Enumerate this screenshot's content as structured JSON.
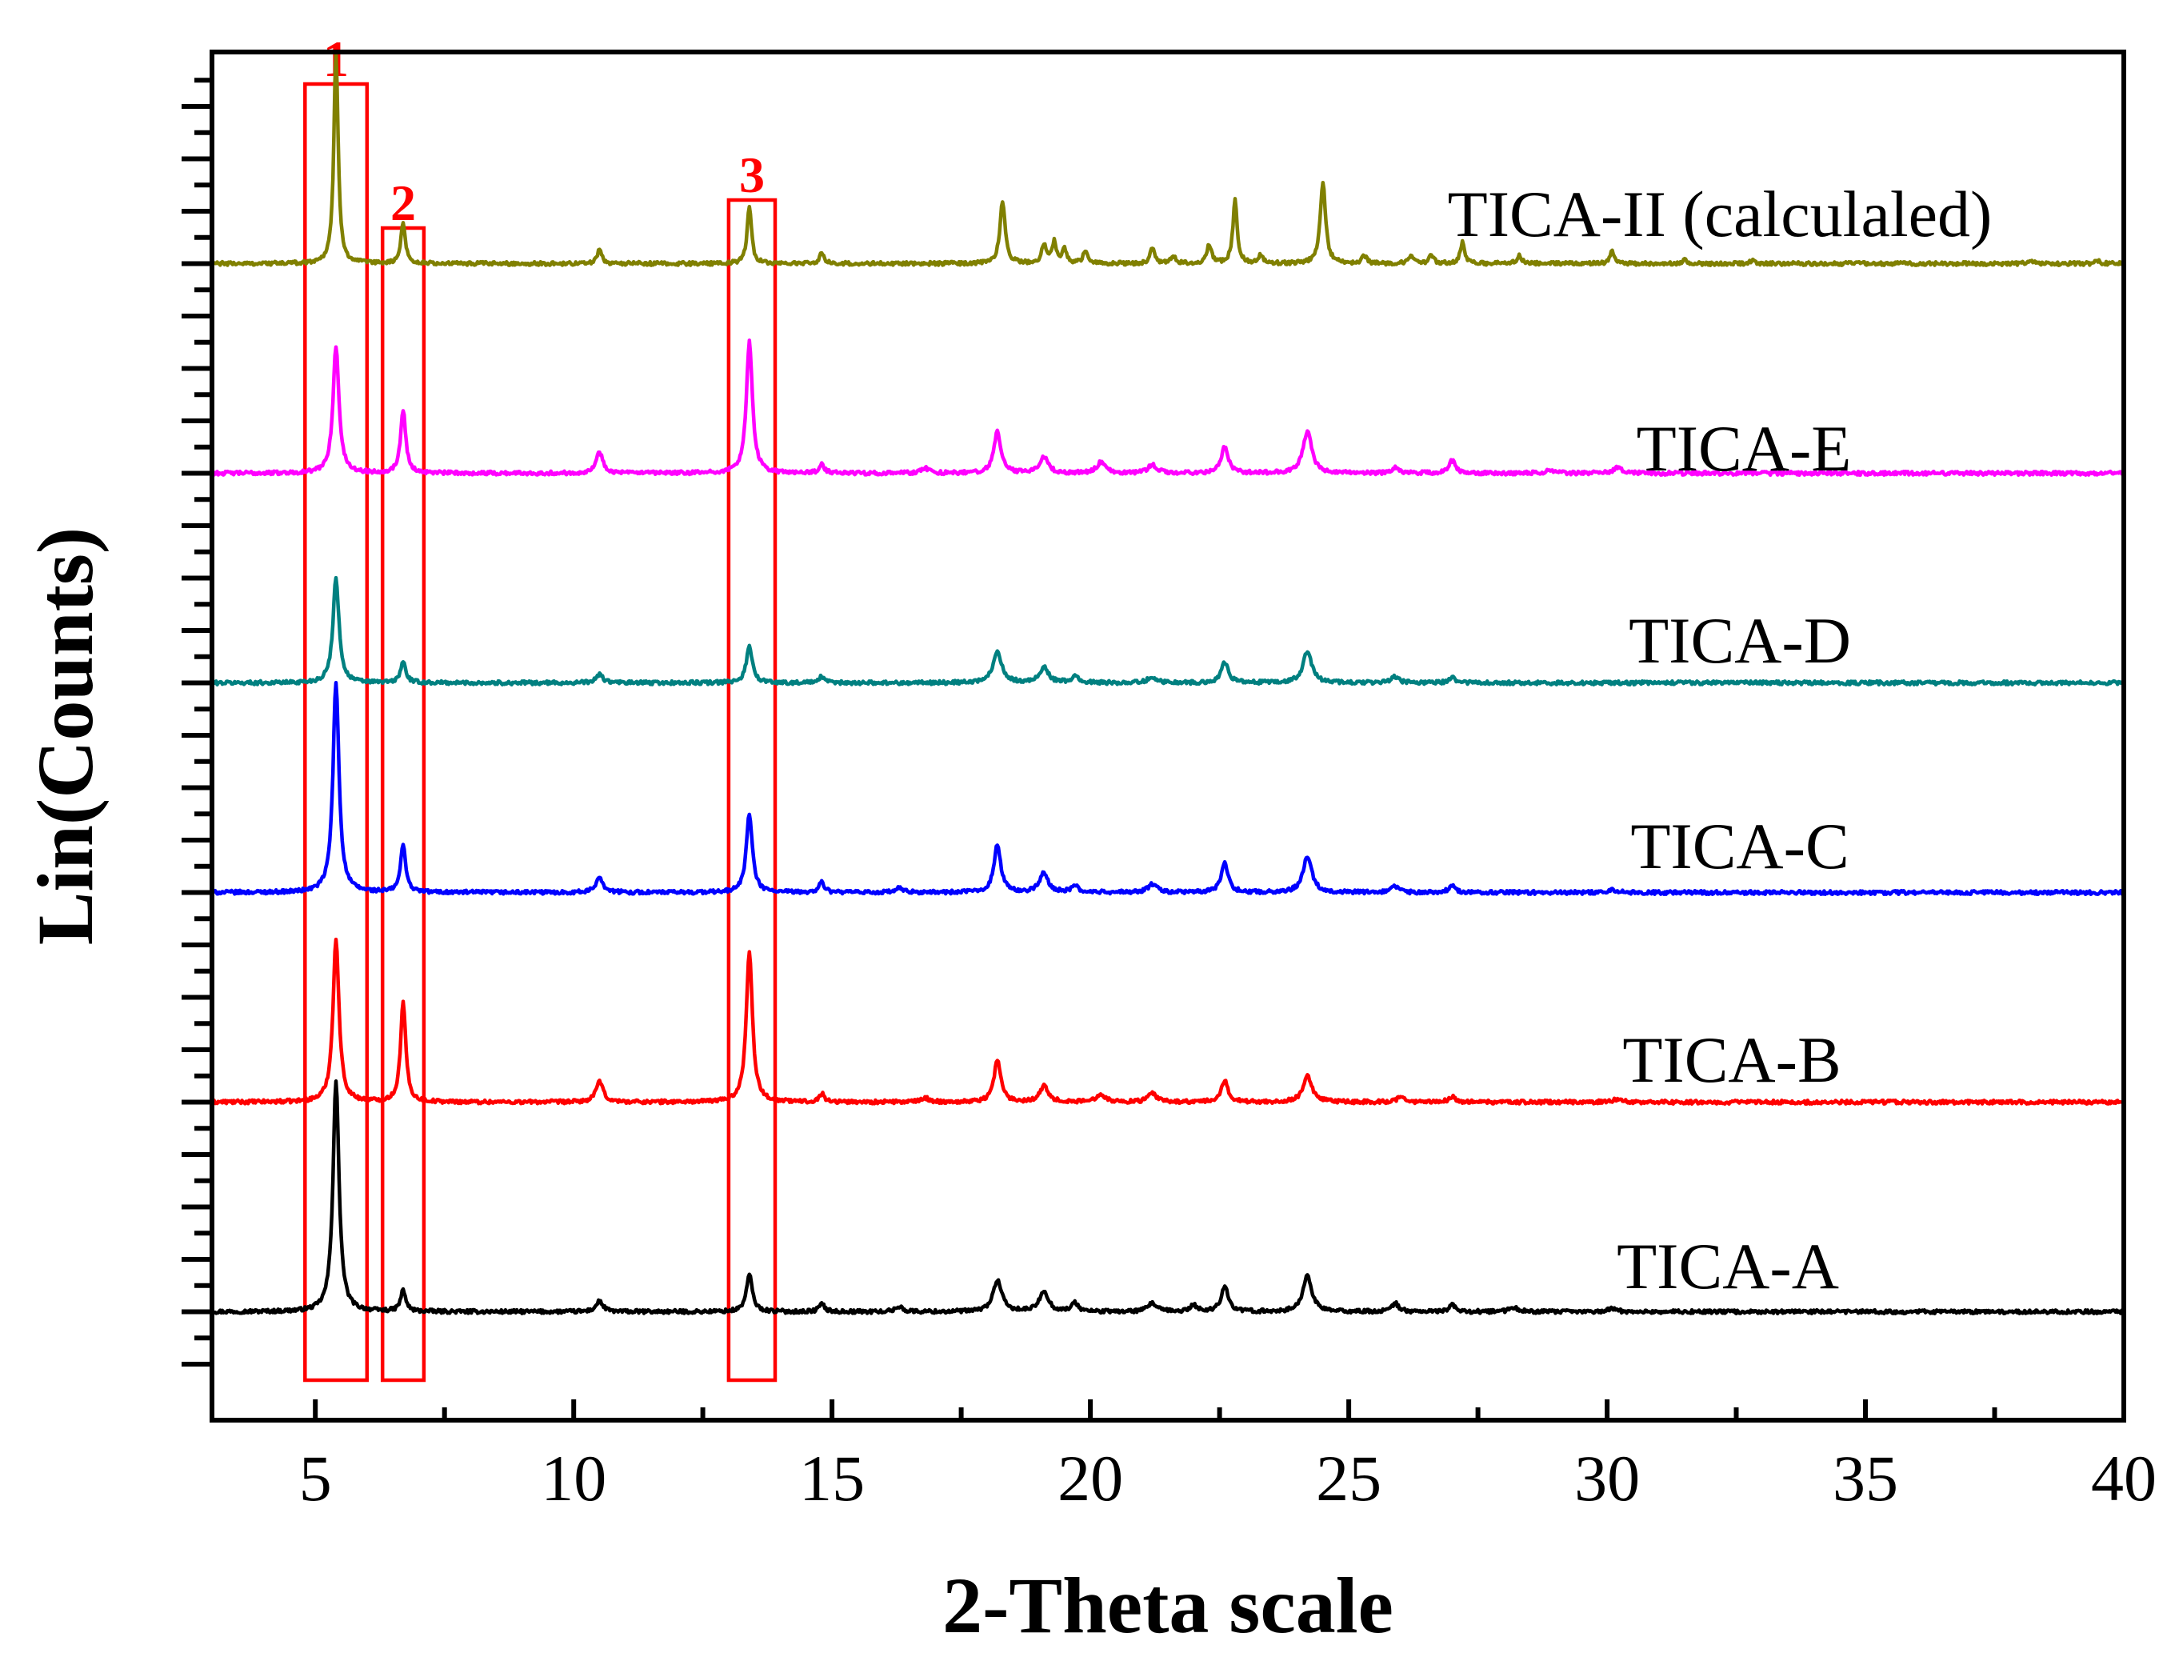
{
  "chart_data": {
    "type": "line",
    "title": "",
    "xlabel": "2-Theta scale",
    "ylabel": "Lin(Counts)",
    "xlim": [
      3,
      40
    ],
    "ylim": [
      0,
      100
    ],
    "x_ticks": [
      5,
      10,
      15,
      20,
      25,
      30,
      35,
      40
    ],
    "x_tick_labels": [
      "5",
      "10",
      "15",
      "20",
      "25",
      "30",
      "35",
      "40"
    ],
    "grid": false,
    "legend": "labels placed beside each trace",
    "series": [
      {
        "name": "TICA-A",
        "label": "TICA-A",
        "color": "#000000",
        "baseline": 5,
        "peaks": [
          [
            5.4,
            22,
            0.07
          ],
          [
            6.7,
            2,
            0.06
          ],
          [
            10.5,
            1,
            0.08
          ],
          [
            13.4,
            3.5,
            0.07
          ],
          [
            14.8,
            0.8,
            0.06
          ],
          [
            16.3,
            0.5,
            0.08
          ],
          [
            18.2,
            3,
            0.1
          ],
          [
            19.1,
            2,
            0.1
          ],
          [
            19.7,
            0.8,
            0.08
          ],
          [
            21.2,
            0.8,
            0.1
          ],
          [
            22.0,
            0.6,
            0.08
          ],
          [
            22.6,
            2.5,
            0.08
          ],
          [
            24.2,
            3.5,
            0.1
          ],
          [
            25.9,
            0.8,
            0.08
          ],
          [
            27.0,
            0.6,
            0.08
          ],
          [
            28.2,
            0.4,
            0.1
          ],
          [
            30.1,
            0.3,
            0.1
          ]
        ]
      },
      {
        "name": "TICA-B",
        "label": "TICA-B",
        "color": "#ff0000",
        "baseline": 25,
        "peaks": [
          [
            5.4,
            15.5,
            0.07
          ],
          [
            6.7,
            9.5,
            0.06
          ],
          [
            10.5,
            2,
            0.08
          ],
          [
            13.4,
            14.5,
            0.07
          ],
          [
            14.8,
            0.8,
            0.06
          ],
          [
            16.8,
            0.4,
            0.08
          ],
          [
            18.2,
            4,
            0.08
          ],
          [
            19.1,
            1.5,
            0.1
          ],
          [
            20.2,
            0.8,
            0.1
          ],
          [
            21.2,
            0.8,
            0.1
          ],
          [
            22.6,
            2,
            0.08
          ],
          [
            24.2,
            2.5,
            0.1
          ],
          [
            26.0,
            0.5,
            0.08
          ],
          [
            27.0,
            0.5,
            0.08
          ],
          [
            30.2,
            0.3,
            0.1
          ]
        ]
      },
      {
        "name": "TICA-C",
        "label": "TICA-C",
        "color": "#0000ff",
        "baseline": 45,
        "peaks": [
          [
            5.4,
            20,
            0.07
          ],
          [
            6.7,
            4.5,
            0.06
          ],
          [
            10.5,
            1.5,
            0.08
          ],
          [
            13.4,
            7.5,
            0.07
          ],
          [
            14.8,
            1,
            0.06
          ],
          [
            16.3,
            0.4,
            0.08
          ],
          [
            18.2,
            4.5,
            0.08
          ],
          [
            19.1,
            1.8,
            0.1
          ],
          [
            19.7,
            0.6,
            0.08
          ],
          [
            21.2,
            0.8,
            0.1
          ],
          [
            22.6,
            2.8,
            0.08
          ],
          [
            24.2,
            3.5,
            0.1
          ],
          [
            25.9,
            0.6,
            0.08
          ],
          [
            27.0,
            0.6,
            0.08
          ],
          [
            30.1,
            0.3,
            0.1
          ]
        ]
      },
      {
        "name": "TICA-D",
        "label": "TICA-D",
        "color": "#008080",
        "baseline": 65,
        "peaks": [
          [
            5.4,
            10,
            0.07
          ],
          [
            6.7,
            2,
            0.06
          ],
          [
            10.5,
            0.8,
            0.08
          ],
          [
            13.4,
            3.5,
            0.07
          ],
          [
            14.8,
            0.6,
            0.06
          ],
          [
            18.2,
            3,
            0.1
          ],
          [
            19.1,
            1.5,
            0.1
          ],
          [
            19.7,
            0.6,
            0.08
          ],
          [
            21.2,
            0.6,
            0.1
          ],
          [
            22.6,
            2,
            0.08
          ],
          [
            24.2,
            3,
            0.1
          ],
          [
            25.9,
            0.6,
            0.08
          ],
          [
            27.0,
            0.5,
            0.08
          ]
        ]
      },
      {
        "name": "TICA-E",
        "label": "TICA-E",
        "color": "#ff00ff",
        "baseline": 85,
        "peaks": [
          [
            5.4,
            12,
            0.07
          ],
          [
            6.7,
            6,
            0.06
          ],
          [
            10.5,
            2,
            0.08
          ],
          [
            13.4,
            12.5,
            0.07
          ],
          [
            14.8,
            0.8,
            0.06
          ],
          [
            16.8,
            0.5,
            0.08
          ],
          [
            18.2,
            4,
            0.08
          ],
          [
            19.1,
            1.5,
            0.1
          ],
          [
            20.2,
            1,
            0.1
          ],
          [
            21.2,
            0.8,
            0.1
          ],
          [
            22.6,
            2.5,
            0.08
          ],
          [
            24.2,
            4,
            0.1
          ],
          [
            25.9,
            0.6,
            0.08
          ],
          [
            27.0,
            1.2,
            0.08
          ],
          [
            28.9,
            0.3,
            0.1
          ],
          [
            30.2,
            0.5,
            0.1
          ]
        ]
      },
      {
        "name": "TICA-II (calculaled)",
        "label": "TICA-II (calculaled)",
        "color": "#808000",
        "baseline": 105,
        "peaks": [
          [
            5.4,
            20,
            0.05
          ],
          [
            6.7,
            4,
            0.05
          ],
          [
            10.5,
            1.5,
            0.05
          ],
          [
            13.4,
            5.5,
            0.05
          ],
          [
            14.8,
            1,
            0.05
          ],
          [
            18.3,
            6,
            0.06
          ],
          [
            19.1,
            1.8,
            0.05
          ],
          [
            19.3,
            2,
            0.05
          ],
          [
            19.5,
            1.4,
            0.05
          ],
          [
            19.9,
            1.2,
            0.05
          ],
          [
            21.2,
            1.5,
            0.05
          ],
          [
            21.6,
            0.8,
            0.05
          ],
          [
            22.3,
            1.8,
            0.05
          ],
          [
            22.8,
            6,
            0.05
          ],
          [
            23.3,
            0.8,
            0.05
          ],
          [
            24.5,
            7.8,
            0.06
          ],
          [
            25.3,
            0.8,
            0.05
          ],
          [
            26.2,
            0.8,
            0.05
          ],
          [
            26.6,
            0.8,
            0.05
          ],
          [
            27.2,
            2,
            0.05
          ],
          [
            28.3,
            0.8,
            0.05
          ],
          [
            30.1,
            1.2,
            0.05
          ],
          [
            31.5,
            0.4,
            0.05
          ],
          [
            32.8,
            0.3,
            0.05
          ],
          [
            38.2,
            0.4,
            0.05
          ],
          [
            39.5,
            0.3,
            0.05
          ]
        ]
      }
    ],
    "annotations": [
      {
        "label": "1",
        "x_range": [
          4.8,
          6.0
        ],
        "color": "#ff0000"
      },
      {
        "label": "2",
        "x_range": [
          6.3,
          7.1
        ],
        "color": "#ff0000"
      },
      {
        "label": "3",
        "x_range": [
          13.0,
          13.9
        ],
        "color": "#ff0000"
      }
    ]
  }
}
